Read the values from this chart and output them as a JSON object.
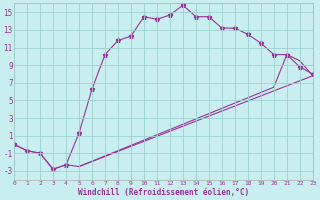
{
  "xlabel": "Windchill (Refroidissement éolien,°C)",
  "background_color": "#c8eef0",
  "grid_color": "#9ecfcf",
  "line_color": "#993399",
  "xlim": [
    0,
    23
  ],
  "ylim": [
    -4,
    16
  ],
  "xticks": [
    0,
    1,
    2,
    3,
    4,
    5,
    6,
    7,
    8,
    9,
    10,
    11,
    12,
    13,
    14,
    15,
    16,
    17,
    18,
    19,
    20,
    21,
    22,
    23
  ],
  "yticks": [
    -3,
    -1,
    1,
    3,
    5,
    7,
    9,
    11,
    13,
    15
  ],
  "line1_x": [
    0,
    1,
    2,
    3,
    4,
    5,
    6,
    7,
    8,
    9,
    10,
    11,
    12,
    13,
    14,
    15,
    16,
    17,
    18,
    19,
    20,
    21,
    22,
    23
  ],
  "line1_y": [
    0,
    -0.7,
    -1.0,
    -2.8,
    -2.3,
    1.3,
    6.3,
    10.2,
    11.8,
    12.3,
    14.5,
    14.2,
    14.7,
    15.8,
    14.5,
    14.5,
    13.2,
    13.2,
    12.5,
    11.5,
    10.2,
    10.2,
    8.8,
    8.0
  ],
  "line2_x": [
    0,
    1,
    2,
    3,
    4,
    5,
    23
  ],
  "line2_y": [
    0,
    -0.7,
    -1.0,
    -2.8,
    -2.3,
    -2.5,
    7.8
  ],
  "line3_x": [
    5,
    20,
    21,
    22,
    23
  ],
  "line3_y": [
    -2.5,
    6.5,
    10.2,
    9.5,
    7.8
  ]
}
